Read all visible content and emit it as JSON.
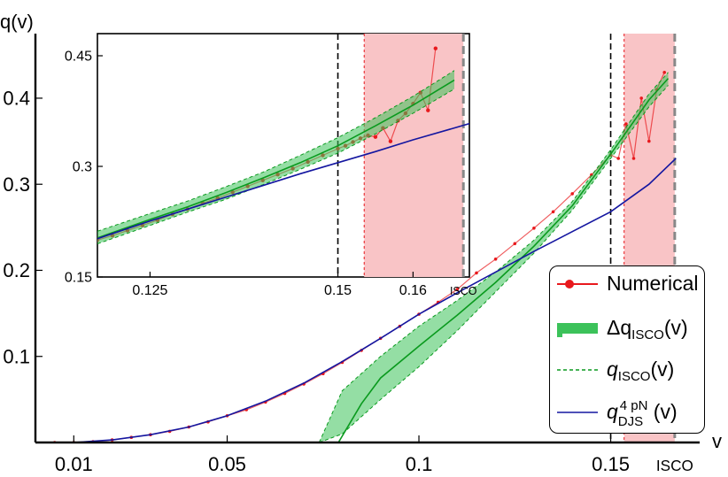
{
  "chart_data": [
    {
      "type": "line",
      "role": "main",
      "xlabel": "v",
      "ylabel": "q(v)",
      "xlim": [
        0.0,
        0.1732
      ],
      "ylim": [
        0.0,
        0.475
      ],
      "x_ticks": [
        0.01,
        0.05,
        0.1,
        0.15
      ],
      "x_tick_labels": [
        "0.01",
        "0.05",
        "0.1",
        "0.15"
      ],
      "y_ticks": [
        0.1,
        0.2,
        0.3,
        0.4
      ],
      "y_tick_labels": [
        "0.1",
        "0.2",
        "0.3",
        "0.4"
      ],
      "isco_label": "ISCO",
      "vlines": [
        {
          "x": 0.15,
          "style": "black-dashed"
        },
        {
          "x": 0.1667,
          "style": "gray-dashed",
          "label": "ISCO"
        }
      ],
      "series": [
        {
          "name": "Numerical",
          "kind": "points",
          "color": "#e8191d",
          "x": [
            0.005,
            0.01,
            0.015,
            0.02,
            0.025,
            0.03,
            0.035,
            0.04,
            0.045,
            0.05,
            0.055,
            0.06,
            0.065,
            0.07,
            0.075,
            0.08,
            0.085,
            0.09,
            0.095,
            0.1,
            0.105,
            0.11,
            0.115,
            0.12,
            0.125,
            0.13,
            0.135,
            0.14,
            0.145,
            0.15,
            0.152,
            0.154,
            0.156,
            0.158,
            0.16,
            0.162,
            0.164
          ],
          "y": [
            0.0,
            0.0,
            0.001,
            0.003,
            0.006,
            0.009,
            0.013,
            0.018,
            0.024,
            0.031,
            0.038,
            0.047,
            0.057,
            0.068,
            0.08,
            0.093,
            0.107,
            0.121,
            0.135,
            0.149,
            0.163,
            0.178,
            0.197,
            0.213,
            0.231,
            0.249,
            0.268,
            0.289,
            0.311,
            0.334,
            0.33,
            0.37,
            0.33,
            0.4,
            0.35,
            0.41,
            0.43
          ]
        },
        {
          "name": "Δq_ISCO(v)",
          "kind": "band",
          "color": "#3cc25a",
          "x": [
            0.074,
            0.08,
            0.09,
            0.1,
            0.11,
            0.12,
            0.13,
            0.14,
            0.15,
            0.16,
            0.165
          ],
          "lower": [
            0.0,
            0.01,
            0.05,
            0.088,
            0.13,
            0.175,
            0.22,
            0.27,
            0.33,
            0.39,
            0.415
          ],
          "upper": [
            0.0,
            0.06,
            0.1,
            0.135,
            0.165,
            0.198,
            0.235,
            0.28,
            0.34,
            0.405,
            0.43
          ]
        },
        {
          "name": "q_ISCO(v)",
          "kind": "line",
          "color": "#0a9a1e",
          "x": [
            0.079,
            0.085,
            0.09,
            0.1,
            0.11,
            0.12,
            0.13,
            0.14,
            0.15,
            0.16,
            0.165
          ],
          "y": [
            0.0,
            0.045,
            0.075,
            0.112,
            0.148,
            0.186,
            0.228,
            0.275,
            0.335,
            0.398,
            0.423
          ]
        },
        {
          "name": "q_DJS^4pN(v)",
          "kind": "line",
          "color": "#1416a0",
          "x": [
            0.005,
            0.01,
            0.02,
            0.03,
            0.04,
            0.05,
            0.06,
            0.07,
            0.08,
            0.09,
            0.1,
            0.11,
            0.12,
            0.13,
            0.14,
            0.15,
            0.16,
            0.167
          ],
          "y": [
            0.0,
            0.0,
            0.003,
            0.009,
            0.018,
            0.031,
            0.048,
            0.069,
            0.094,
            0.121,
            0.149,
            0.174,
            0.198,
            0.222,
            0.245,
            0.268,
            0.3,
            0.33
          ]
        }
      ],
      "red_band": {
        "color": "#f9c4c6",
        "x_start": 0.1535,
        "x_end": 0.1667
      }
    },
    {
      "type": "line",
      "role": "inset",
      "xlim": [
        0.118,
        0.1675
      ],
      "ylim": [
        0.15,
        0.48
      ],
      "x_ticks": [
        0.125,
        0.15,
        0.16
      ],
      "x_tick_labels": [
        "0.125",
        "0.15",
        "0.16"
      ],
      "y_ticks": [
        0.15,
        0.3,
        0.45
      ],
      "y_tick_labels": [
        "0.15",
        "0.3",
        "0.45"
      ],
      "isco_label": "ISCO",
      "vlines": [
        {
          "x": 0.15,
          "style": "black-dashed"
        },
        {
          "x": 0.1667,
          "style": "gray-dashed",
          "label": "ISCO"
        }
      ],
      "series": [
        {
          "name": "Numerical",
          "kind": "points",
          "color": "#e8191d",
          "x": [
            0.118,
            0.12,
            0.122,
            0.124,
            0.126,
            0.128,
            0.13,
            0.132,
            0.134,
            0.136,
            0.138,
            0.14,
            0.142,
            0.144,
            0.146,
            0.148,
            0.15,
            0.151,
            0.152,
            0.153,
            0.154,
            0.155,
            0.156,
            0.157,
            0.158,
            0.159,
            0.16,
            0.161,
            0.162,
            0.163
          ],
          "y": [
            0.2,
            0.206,
            0.213,
            0.22,
            0.227,
            0.235,
            0.242,
            0.25,
            0.257,
            0.265,
            0.273,
            0.281,
            0.289,
            0.297,
            0.306,
            0.315,
            0.324,
            0.328,
            0.333,
            0.338,
            0.342,
            0.34,
            0.352,
            0.334,
            0.362,
            0.372,
            0.385,
            0.4,
            0.376,
            0.46
          ]
        },
        {
          "name": "Δq_ISCO(v)",
          "kind": "band",
          "color": "#3cc25a",
          "x": [
            0.118,
            0.125,
            0.13,
            0.135,
            0.14,
            0.145,
            0.15,
            0.155,
            0.16,
            0.1655
          ],
          "lower": [
            0.195,
            0.22,
            0.238,
            0.255,
            0.275,
            0.296,
            0.318,
            0.344,
            0.372,
            0.405
          ],
          "upper": [
            0.212,
            0.236,
            0.253,
            0.272,
            0.292,
            0.315,
            0.339,
            0.366,
            0.395,
            0.43
          ]
        },
        {
          "name": "q_ISCO(v)",
          "kind": "line",
          "color": "#0a9a1e",
          "x": [
            0.118,
            0.125,
            0.13,
            0.135,
            0.14,
            0.145,
            0.15,
            0.155,
            0.16,
            0.1655
          ],
          "y": [
            0.203,
            0.228,
            0.245,
            0.264,
            0.284,
            0.305,
            0.328,
            0.355,
            0.383,
            0.417
          ]
        },
        {
          "name": "q_DJS^4pN(v)",
          "kind": "line",
          "color": "#1416a0",
          "x": [
            0.118,
            0.125,
            0.13,
            0.135,
            0.14,
            0.145,
            0.15,
            0.155,
            0.16,
            0.1675
          ],
          "y": [
            0.202,
            0.226,
            0.242,
            0.258,
            0.274,
            0.29,
            0.305,
            0.32,
            0.336,
            0.358
          ]
        }
      ],
      "red_band": {
        "color": "#f9c4c6",
        "x_start": 0.1535,
        "x_end": 0.1667
      }
    }
  ],
  "legend": {
    "items": [
      {
        "name": "Numerical",
        "main": "Numerical"
      },
      {
        "name": "Δq_ISCO(v)",
        "main": "Δq",
        "sub": "ISCO",
        "tail": "(v)"
      },
      {
        "name": "q_ISCO(v)",
        "main": "q",
        "sub": "ISCO",
        "tail": "(v)"
      },
      {
        "name": "q_DJS^4pN(v)",
        "main": "q",
        "sup": "4 pN",
        "sub": "DJS",
        "tail": "(v)"
      }
    ]
  }
}
